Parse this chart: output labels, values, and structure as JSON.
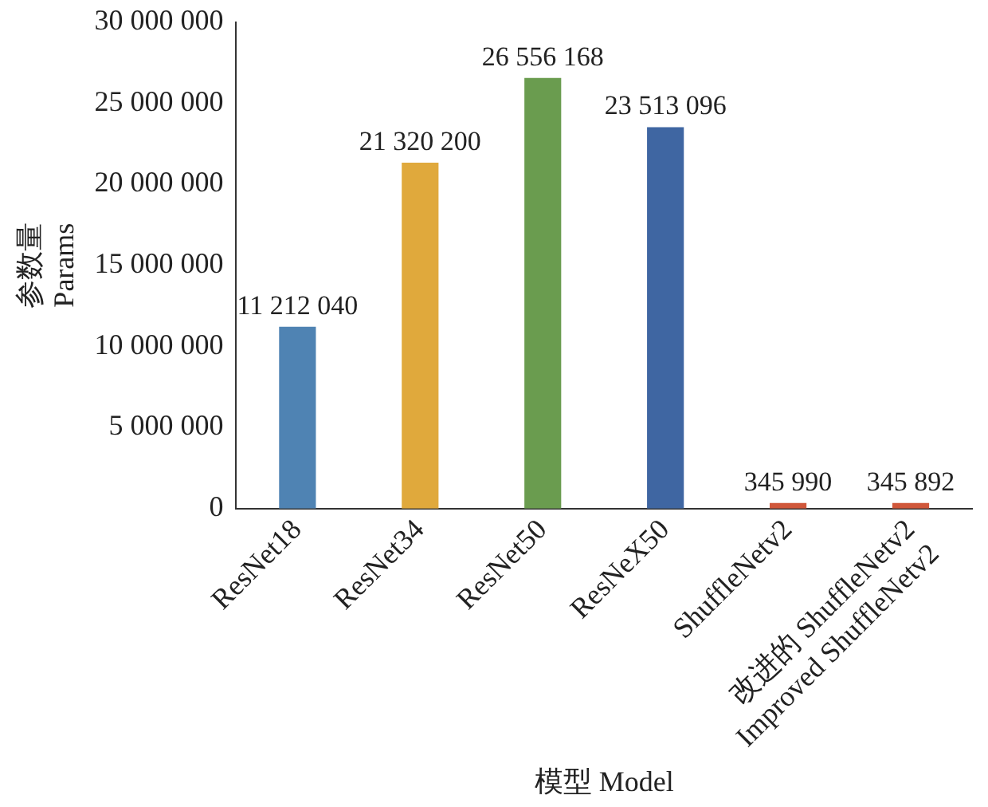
{
  "chart_data": {
    "type": "bar",
    "xlabel": "模型 Model",
    "ylabel": "参数量\nParams",
    "categories": [
      "ResNet18",
      "ResNet34",
      "ResNet50",
      "ResNeX50",
      "ShuffleNetv2",
      "改进的 ShuffleNetv2\nImproved ShuffleNetv2"
    ],
    "values": [
      11212040,
      21320200,
      26556168,
      23513096,
      345990,
      345892
    ],
    "colors": [
      "#4f83b3",
      "#e0a93c",
      "#6a9c4f",
      "#3f66a2",
      "#d0573a",
      "#d0573a"
    ],
    "value_labels": [
      "11 212 040",
      "21 320 200",
      "26 556 168",
      "23 513 096",
      "345 990",
      "345 892"
    ],
    "ylim": [
      0,
      30000000
    ],
    "yticks": [
      {
        "value": 0,
        "label": "0"
      },
      {
        "value": 5000000,
        "label": "5 000 000"
      },
      {
        "value": 10000000,
        "label": "10 000 000"
      },
      {
        "value": 15000000,
        "label": "15 000 000"
      },
      {
        "value": 20000000,
        "label": "20 000 000"
      },
      {
        "value": 25000000,
        "label": "25 000 000"
      },
      {
        "value": 30000000,
        "label": "30 000 000"
      }
    ],
    "grid": false,
    "legend": false
  }
}
